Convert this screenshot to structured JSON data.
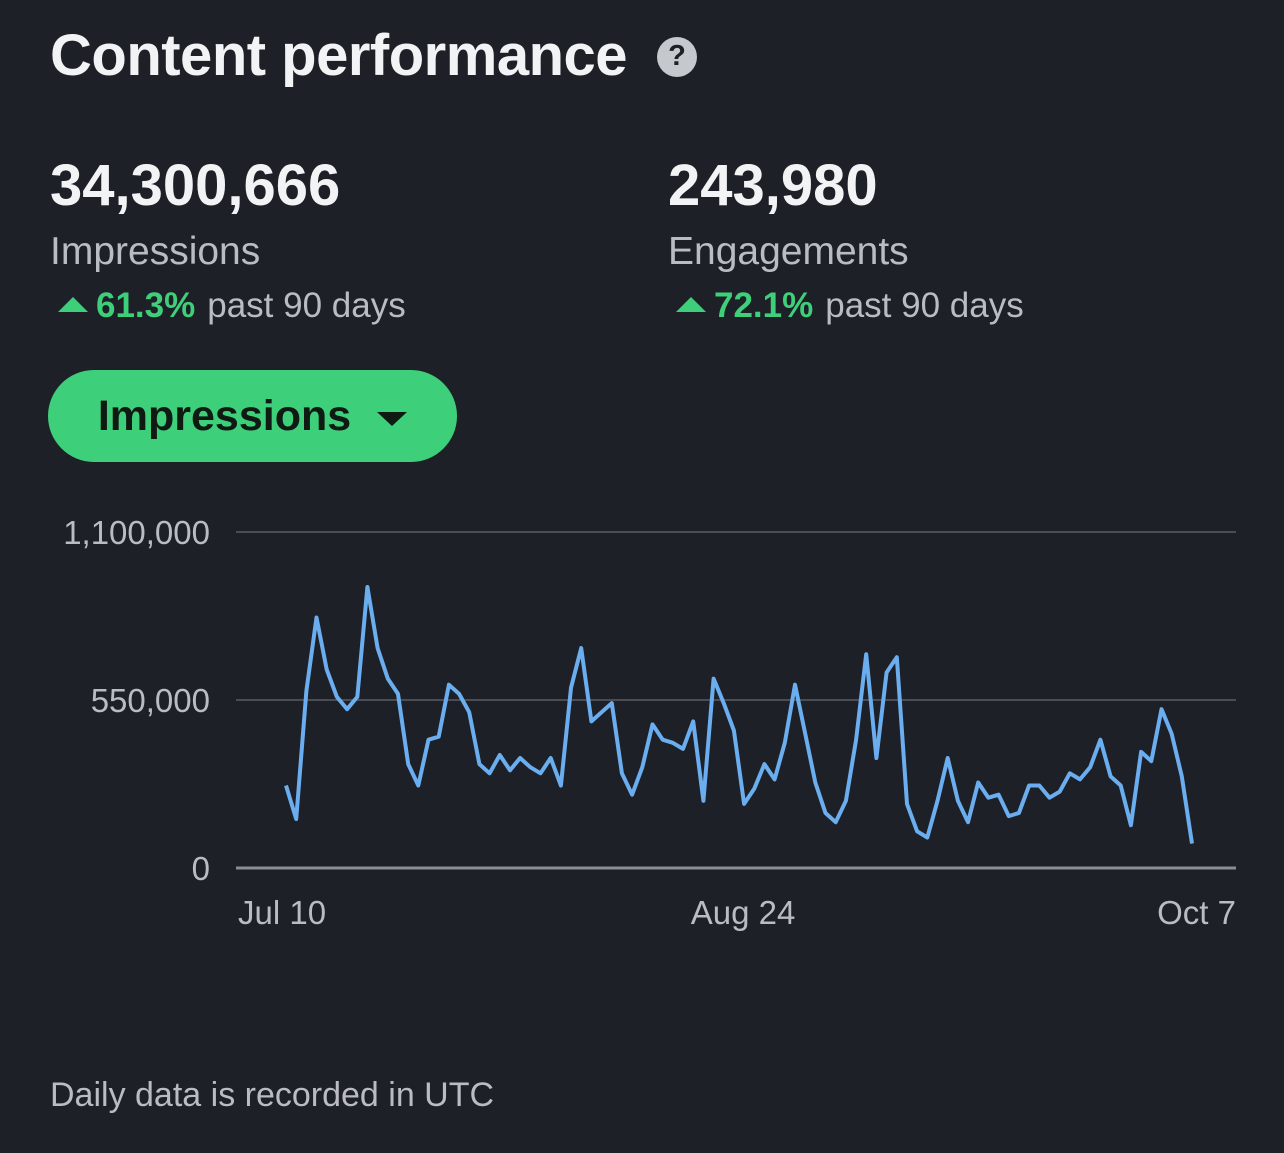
{
  "header": {
    "title": "Content performance",
    "help_icon": "question-circle-icon"
  },
  "metrics": [
    {
      "value": "34,300,666",
      "label": "Impressions",
      "change": "61.3%",
      "period": "past 90 days",
      "trend_icon": "triangle-up-icon"
    },
    {
      "value": "243,980",
      "label": "Engagements",
      "change": "72.1%",
      "period": "past 90 days",
      "trend_icon": "triangle-up-icon"
    }
  ],
  "metric_selector": {
    "label": "Impressions",
    "icon": "caret-down-icon"
  },
  "colors": {
    "background": "#1d2026",
    "accent": "#3ecf7a",
    "line": "#6aaef0",
    "grid": "#4a4d54"
  },
  "chart_data": {
    "type": "line",
    "y_ticks": [
      "1,100,000",
      "550,000",
      "0"
    ],
    "y_tick_values": [
      1100000,
      550000,
      0
    ],
    "x_ticks": [
      "Jul 10",
      "Aug 24",
      "Oct 7"
    ],
    "ylim": [
      0,
      1100000
    ],
    "series": [
      {
        "values": [
          270000,
          160000,
          580000,
          820000,
          650000,
          560000,
          520000,
          560000,
          920000,
          720000,
          620000,
          570000,
          340000,
          270000,
          420000,
          430000,
          600000,
          570000,
          510000,
          340000,
          310000,
          370000,
          320000,
          360000,
          330000,
          310000,
          360000,
          270000,
          590000,
          720000,
          480000,
          510000,
          540000,
          310000,
          240000,
          330000,
          470000,
          420000,
          410000,
          390000,
          480000,
          220000,
          620000,
          540000,
          450000,
          210000,
          260000,
          340000,
          290000,
          410000,
          600000,
          440000,
          280000,
          180000,
          150000,
          220000,
          420000,
          700000,
          360000,
          640000,
          690000,
          210000,
          120000,
          100000,
          220000,
          360000,
          220000,
          150000,
          280000,
          230000,
          240000,
          170000,
          180000,
          270000,
          270000,
          230000,
          250000,
          310000,
          290000,
          330000,
          420000,
          300000,
          270000,
          140000,
          380000,
          350000,
          520000,
          440000,
          300000,
          80000
        ]
      }
    ],
    "grid": true
  },
  "footer": {
    "note": "Daily data is recorded in UTC"
  }
}
